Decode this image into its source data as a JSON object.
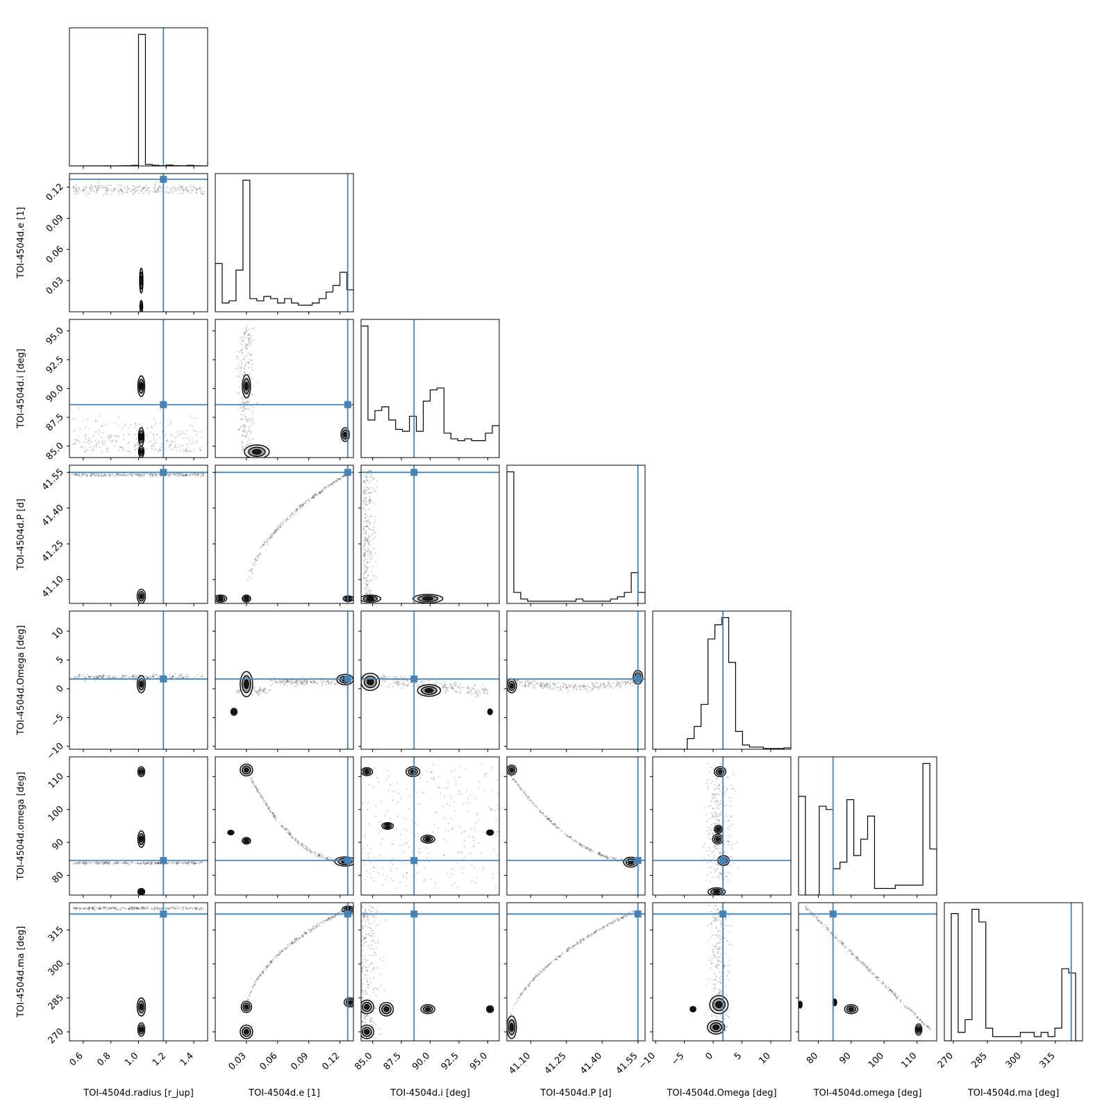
{
  "chart_data": {
    "type": "corner",
    "title": "",
    "truth_color": "#4682b4",
    "parameters": [
      {
        "key": "radius",
        "label": "TOI-4504d.radius [r_jup]",
        "range": [
          0.5,
          1.5
        ],
        "ticks": [
          0.6,
          0.8,
          1.0,
          1.2,
          1.4
        ],
        "tick_labels": [
          "0.6",
          "0.8",
          "1.0",
          "1.2",
          "1.4"
        ],
        "truth": 1.18
      },
      {
        "key": "e",
        "label": "TOI-4504d.e [1]",
        "range": [
          0.0,
          0.133
        ],
        "ticks": [
          0.03,
          0.06,
          0.09,
          0.12
        ],
        "tick_labels": [
          "0.03",
          "0.06",
          "0.09",
          "0.12"
        ],
        "truth": 0.1275
      },
      {
        "key": "i",
        "label": "TOI-4504d.i [deg]",
        "range": [
          84.0,
          96.0
        ],
        "ticks": [
          85.0,
          87.5,
          90.0,
          92.5,
          95.0
        ],
        "tick_labels": [
          "85.0",
          "87.5",
          "90.0",
          "92.5",
          "95.0"
        ],
        "truth": 88.6
      },
      {
        "key": "P",
        "label": "TOI-4504d.P [d]",
        "range": [
          41.0,
          41.58
        ],
        "ticks": [
          41.1,
          41.25,
          41.4,
          41.55
        ],
        "tick_labels": [
          "41.10",
          "41.25",
          "41.40",
          "41.55"
        ],
        "truth": 41.55
      },
      {
        "key": "Omega",
        "label": "TOI-4504d.Omega [deg]",
        "range": [
          -10.5,
          13.5
        ],
        "ticks": [
          -10,
          -5,
          0,
          5,
          10
        ],
        "tick_labels": [
          "−10",
          "−5",
          "0",
          "5",
          "10"
        ],
        "truth": 1.7
      },
      {
        "key": "omega",
        "label": "TOI-4504d.omega [deg]",
        "range": [
          74,
          116
        ],
        "ticks": [
          80,
          90,
          100,
          110
        ],
        "tick_labels": [
          "80",
          "90",
          "100",
          "110"
        ],
        "truth": 84.5
      },
      {
        "key": "ma",
        "label": "TOI-4504d.ma [deg]",
        "range": [
          266,
          327
        ],
        "ticks": [
          270,
          285,
          300,
          315
        ],
        "tick_labels": [
          "270",
          "285",
          "300",
          "315"
        ],
        "truth": 322.0
      }
    ],
    "histograms": [
      {
        "param": "radius",
        "edges": [
          0.5,
          0.55,
          0.6,
          0.65,
          0.7,
          0.75,
          0.8,
          0.85,
          0.9,
          0.95,
          1.0,
          1.05,
          1.1,
          1.15,
          1.2,
          1.25,
          1.3,
          1.35,
          1.4,
          1.45,
          1.5
        ],
        "counts": [
          0,
          0,
          0.1,
          0.2,
          0.1,
          0.3,
          0.2,
          0.3,
          0.4,
          0.8,
          180,
          2,
          0.9,
          0.4,
          1.2,
          0.4,
          0.3,
          0.8,
          0.3,
          0.2
        ]
      },
      {
        "param": "e",
        "edges": [
          0.0,
          0.0067,
          0.0133,
          0.02,
          0.0267,
          0.0333,
          0.04,
          0.0467,
          0.0533,
          0.06,
          0.0667,
          0.0733,
          0.08,
          0.0867,
          0.0933,
          0.1,
          0.1067,
          0.1133,
          0.12,
          0.1267,
          0.1333
        ],
        "counts": [
          22,
          4,
          5,
          19,
          60,
          6,
          5,
          7,
          6,
          4,
          6,
          4,
          3,
          3,
          4,
          6,
          9,
          12,
          18,
          10
        ]
      },
      {
        "param": "i",
        "edges": [
          84.0,
          84.6,
          85.2,
          85.8,
          86.4,
          87.0,
          87.6,
          88.2,
          88.8,
          89.4,
          90.0,
          90.6,
          91.2,
          91.8,
          92.4,
          93.0,
          93.6,
          94.2,
          94.8,
          95.4,
          96.0
        ],
        "counts": [
          70,
          20,
          25,
          27,
          20,
          15,
          14,
          22,
          14,
          30,
          36,
          37,
          13,
          10,
          9,
          10,
          9,
          9,
          13,
          17
        ]
      },
      {
        "param": "P",
        "edges": [
          41.0,
          41.029,
          41.058,
          41.087,
          41.116,
          41.145,
          41.174,
          41.203,
          41.232,
          41.261,
          41.29,
          41.319,
          41.348,
          41.377,
          41.406,
          41.435,
          41.464,
          41.493,
          41.522,
          41.551,
          41.58
        ],
        "counts": [
          60,
          5,
          2,
          1,
          1,
          1,
          1,
          1,
          1,
          1,
          2,
          1,
          1,
          1,
          1,
          2,
          3,
          5,
          14,
          5
        ]
      },
      {
        "param": "Omega",
        "edges": [
          -10.5,
          -9.3,
          -8.1,
          -6.9,
          -5.7,
          -4.5,
          -3.3,
          -2.1,
          -0.9,
          0.3,
          1.5,
          2.7,
          3.9,
          5.1,
          6.3,
          7.5,
          8.7,
          9.9,
          11.1,
          12.3,
          13.5
        ],
        "counts": [
          0,
          0,
          0,
          0,
          0,
          1.5,
          3.2,
          6.3,
          15.5,
          17.5,
          18.5,
          12.2,
          2.5,
          0.6,
          0.3,
          0.3,
          0.1,
          0.1,
          0.1,
          0.2
        ]
      },
      {
        "param": "omega",
        "edges": [
          74,
          76.1,
          78.2,
          80.3,
          82.4,
          84.5,
          86.6,
          88.7,
          90.8,
          92.9,
          95.0,
          97.1,
          99.2,
          101.3,
          103.4,
          105.5,
          107.6,
          109.7,
          111.8,
          113.9,
          116
        ],
        "counts": [
          30,
          0,
          0,
          27,
          26,
          8,
          10,
          29,
          12,
          17,
          24,
          2,
          2,
          2,
          3,
          3,
          3,
          3,
          40,
          14
        ]
      },
      {
        "param": "ma",
        "edges": [
          266,
          269.05,
          272.1,
          275.15,
          278.2,
          281.25,
          284.3,
          287.35,
          290.4,
          293.45,
          296.5,
          299.55,
          302.6,
          305.65,
          308.7,
          311.75,
          314.8,
          317.85,
          320.9,
          323.95,
          327
        ],
        "counts": [
          0,
          30,
          2,
          5,
          31,
          28,
          3,
          1,
          1,
          1,
          1,
          2,
          2,
          1,
          2,
          1,
          3,
          17,
          16,
          0
        ]
      }
    ],
    "truth_values": {
      "radius": 1.18,
      "e": 0.1275,
      "i": 88.6,
      "P": 41.55,
      "Omega": 1.7,
      "omega": 84.5,
      "ma": 322.0
    }
  }
}
